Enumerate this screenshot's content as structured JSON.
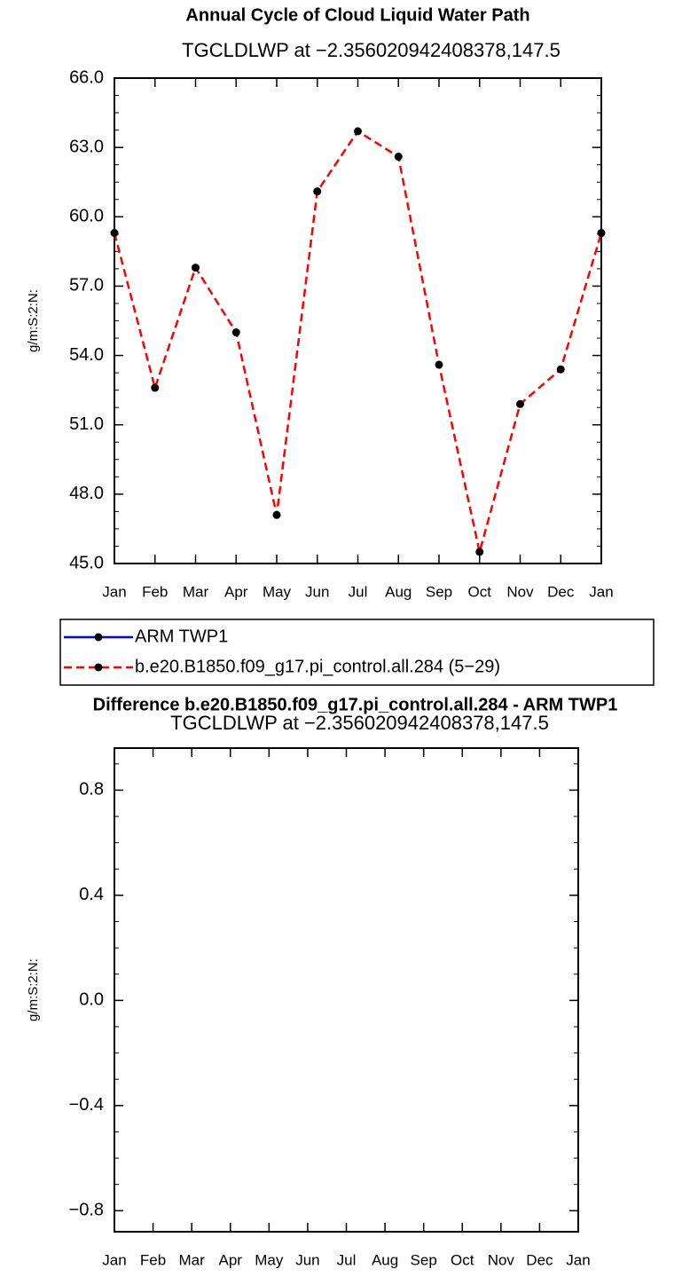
{
  "chart_data": [
    {
      "type": "line",
      "title": "Annual Cycle of Cloud Liquid Water Path",
      "subtitle": "TGCLDLWP at −2.356020942408378,147.5",
      "y_label": "g/m:S:2:N:",
      "categories": [
        "Jan",
        "Feb",
        "Mar",
        "Apr",
        "May",
        "Jun",
        "Jul",
        "Aug",
        "Sep",
        "Oct",
        "Nov",
        "Dec",
        "Jan"
      ],
      "series": [
        {
          "name": "ARM TWP1",
          "color": "#0000ff",
          "line_style": "solid",
          "values": [
            null,
            null,
            null,
            null,
            null,
            null,
            null,
            null,
            null,
            null,
            null,
            null,
            null
          ]
        },
        {
          "name": "b.e20.B1850.f09_g17.pi_control.all.284 (5−29)",
          "color": "#ff0000",
          "line_style": "dashed",
          "values": [
            59.3,
            52.6,
            57.8,
            55.0,
            47.1,
            61.1,
            63.7,
            62.6,
            53.6,
            45.5,
            51.9,
            53.4,
            59.3
          ]
        }
      ],
      "ylim": [
        45,
        66
      ],
      "yticks": [
        {
          "value": 45,
          "label": "45.0"
        },
        {
          "value": 48,
          "label": "48.0"
        },
        {
          "value": 51,
          "label": "51.0"
        },
        {
          "value": 54,
          "label": "54.0"
        },
        {
          "value": 57,
          "label": "57.0"
        },
        {
          "value": 60,
          "label": "60.0"
        },
        {
          "value": 63,
          "label": "63.0"
        },
        {
          "value": 66,
          "label": "66.0"
        }
      ],
      "legend": "below"
    },
    {
      "type": "line",
      "title": "Difference b.e20.B1850.f09_g17.pi_control.all.284 - ARM TWP1",
      "subtitle": "TGCLDLWP at −2.356020942408378,147.5",
      "y_label": "g/m:S:2:N:",
      "categories": [
        "Jan",
        "Feb",
        "Mar",
        "Apr",
        "May",
        "Jun",
        "Jul",
        "Aug",
        "Sep",
        "Oct",
        "Nov",
        "Dec",
        "Jan"
      ],
      "ylim": [
        -0.88,
        0.96
      ],
      "yticks": [
        {
          "value": -0.8,
          "label": "−0.8"
        },
        {
          "value": -0.4,
          "label": "−0.4"
        },
        {
          "value": 0,
          "label": "0.0"
        },
        {
          "value": 0.4,
          "label": "0.4"
        },
        {
          "value": 0.8,
          "label": "0.8"
        }
      ]
    }
  ]
}
